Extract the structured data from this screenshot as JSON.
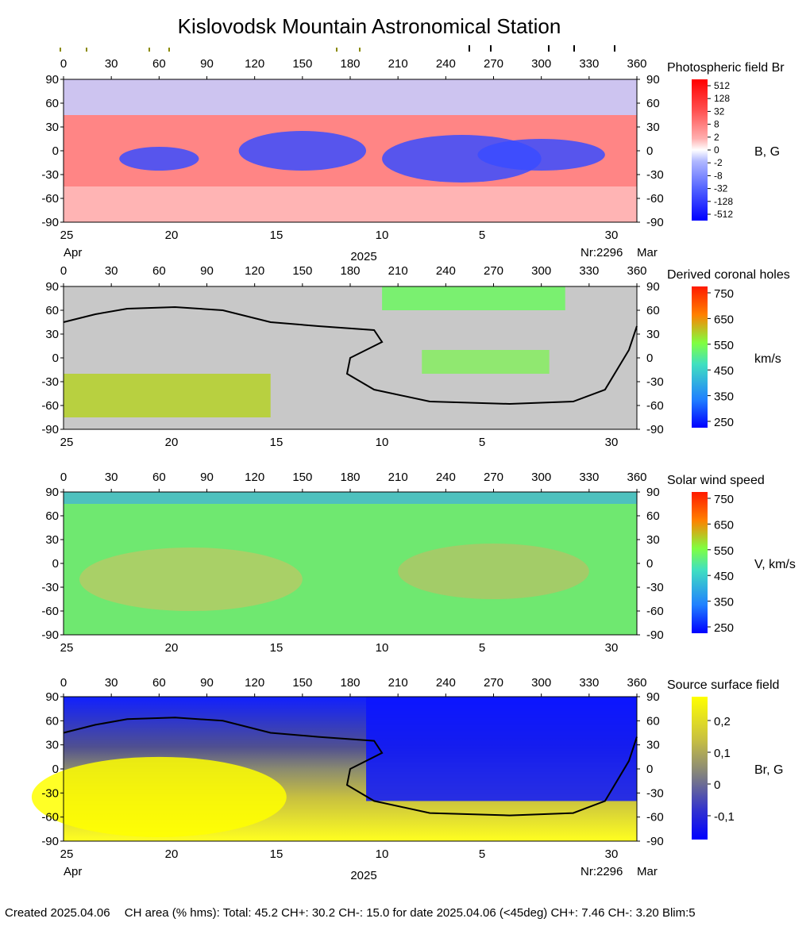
{
  "title": "Kislovodsk Mountain Astronomical Station",
  "footer": {
    "created": "Created  2025.04.06",
    "stats": "CH area (% hms): Total: 45.2 CH+: 30.2   CH-: 15.0 for date 2025.04.06 (<45deg) CH+: 7.46    CH-: 3.20 Blim:5"
  },
  "date_labels": {
    "left_month": "Apr",
    "year": "2025",
    "rotation": "Nr:2296",
    "right_month": "Mar"
  },
  "date_ticks": [
    "25",
    "20",
    "15",
    "10",
    "5",
    "30"
  ],
  "chart_data": [
    {
      "type": "heatmap",
      "title": "Photospheric field Br",
      "colorbar_label": "B, G",
      "colorbar_ticks": [
        "512",
        "128",
        "32",
        "8",
        "2",
        "0",
        "-2",
        "-8",
        "-32",
        "-128",
        "-512"
      ],
      "x_ticks": [
        0,
        30,
        60,
        90,
        120,
        150,
        180,
        210,
        240,
        270,
        300,
        330,
        360
      ],
      "y_ticks": [
        90,
        60,
        30,
        0,
        -30,
        -60,
        -90
      ],
      "xlim": [
        0,
        360
      ],
      "ylim": [
        -90,
        90
      ]
    },
    {
      "type": "heatmap",
      "title": "Derived coronal holes",
      "colorbar_label": "km/s",
      "colorbar_ticks": [
        "750",
        "650",
        "550",
        "450",
        "350",
        "250"
      ],
      "x_ticks": [
        0,
        30,
        60,
        90,
        120,
        150,
        180,
        210,
        240,
        270,
        300,
        330,
        360
      ],
      "y_ticks": [
        90,
        60,
        30,
        0,
        -30,
        -60,
        -90
      ],
      "xlim": [
        0,
        360
      ],
      "ylim": [
        -90,
        90
      ]
    },
    {
      "type": "heatmap",
      "title": "Solar wind speed",
      "colorbar_label": "V, km/s",
      "colorbar_ticks": [
        "750",
        "650",
        "550",
        "450",
        "350",
        "250"
      ],
      "x_ticks": [
        0,
        30,
        60,
        90,
        120,
        150,
        180,
        210,
        240,
        270,
        300,
        330,
        360
      ],
      "y_ticks": [
        90,
        60,
        30,
        0,
        -30,
        -60,
        -90
      ],
      "xlim": [
        0,
        360
      ],
      "ylim": [
        -90,
        90
      ]
    },
    {
      "type": "heatmap",
      "title": "Source surface field",
      "colorbar_label": "Br, G",
      "colorbar_ticks": [
        "0,2",
        "0,1",
        "0",
        "-0,1"
      ],
      "x_ticks": [
        0,
        30,
        60,
        90,
        120,
        150,
        180,
        210,
        240,
        270,
        300,
        330,
        360
      ],
      "y_ticks": [
        90,
        60,
        30,
        0,
        -30,
        -60,
        -90
      ],
      "xlim": [
        0,
        360
      ],
      "ylim": [
        -90,
        90
      ]
    }
  ],
  "neutral_line": [
    [
      0,
      45
    ],
    [
      20,
      55
    ],
    [
      40,
      62
    ],
    [
      70,
      64
    ],
    [
      100,
      60
    ],
    [
      130,
      45
    ],
    [
      160,
      40
    ],
    [
      195,
      35
    ],
    [
      200,
      20
    ],
    [
      180,
      0
    ],
    [
      178,
      -20
    ],
    [
      195,
      -40
    ],
    [
      230,
      -55
    ],
    [
      280,
      -58
    ],
    [
      320,
      -55
    ],
    [
      340,
      -40
    ],
    [
      355,
      10
    ],
    [
      360,
      40
    ]
  ]
}
